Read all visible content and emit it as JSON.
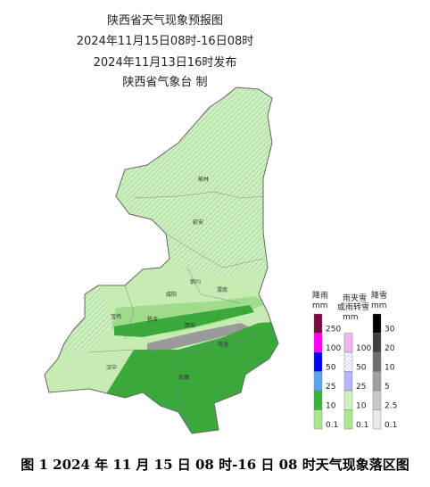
{
  "header": {
    "title": "陕西省天气现象预报图",
    "period": "2024年11月15日08时-16日08时",
    "issued": "2024年11月13日16时发布",
    "agency": "陕西省气象台 制"
  },
  "cities": [
    "榆林",
    "延安",
    "铜川",
    "渭南",
    "咸阳",
    "宝鸡",
    "杨凌",
    "西安",
    "商洛",
    "汉中",
    "安康"
  ],
  "legend": {
    "rain": {
      "title": "降雨",
      "unit": "mm",
      "ticks": [
        250,
        100,
        50,
        25,
        10,
        0.1
      ]
    },
    "sleet": {
      "title": "雨夹雪",
      "title2": "或雨转雪",
      "unit": "mm",
      "ticks": [
        100,
        50,
        25,
        10,
        0.1
      ]
    },
    "snow": {
      "title": "降雪",
      "unit": "mm",
      "ticks": [
        30,
        20,
        10,
        5,
        2.5,
        0.1
      ]
    }
  },
  "caption": "图 1 2024 年 11 月 15 日 08 时-16 日 08 时天气现象落区图"
}
